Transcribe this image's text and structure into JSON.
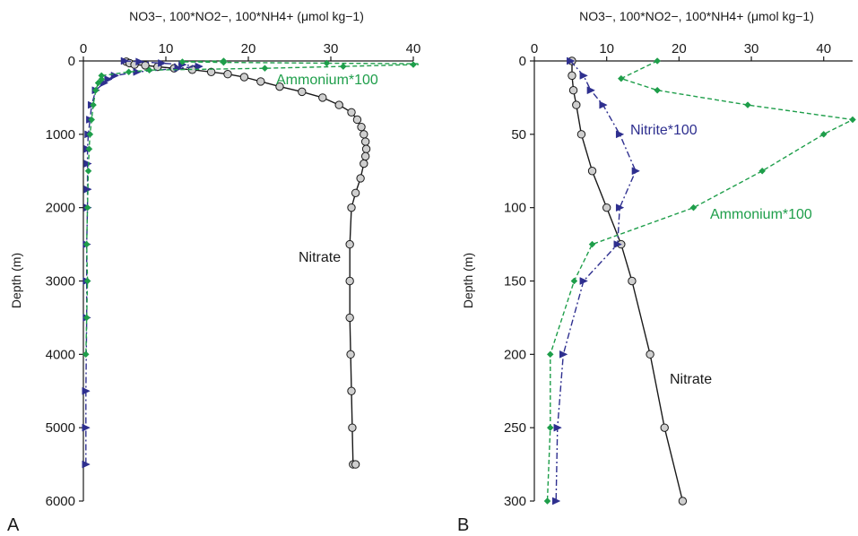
{
  "chart_data": [
    {
      "type": "line",
      "panel_label": "A",
      "xlabel": "NO3−, 100*NO2−, 100*NH4+ (μmol kg−1)",
      "ylabel": "Depth (m)",
      "xlim": [
        0,
        40
      ],
      "ylim": [
        6000,
        0
      ],
      "x_axis_position": "top",
      "x_ticks": [
        0,
        10,
        20,
        30,
        40
      ],
      "y_ticks": [
        0,
        1000,
        2000,
        3000,
        4000,
        5000,
        6000
      ],
      "grid": false,
      "series": [
        {
          "name": "Nitrate",
          "color": "#1a1a1a",
          "line": "solid",
          "marker": "circle",
          "x": [
            5.2,
            5.6,
            6.2,
            7.5,
            9.0,
            11.0,
            13.2,
            15.5,
            17.5,
            19.5,
            21.5,
            23.8,
            26.5,
            29.0,
            31.0,
            32.5,
            33.2,
            33.7,
            34.0,
            34.2,
            34.3,
            34.2,
            34.0,
            33.6,
            33.0,
            32.5,
            32.3,
            32.3,
            32.3,
            32.4,
            32.5,
            32.6,
            32.7,
            33.0
          ],
          "y": [
            10,
            30,
            50,
            60,
            80,
            100,
            120,
            150,
            180,
            220,
            280,
            350,
            420,
            500,
            600,
            700,
            800,
            900,
            1000,
            1100,
            1200,
            1300,
            1400,
            1600,
            1800,
            2000,
            2500,
            3000,
            3500,
            4000,
            4500,
            5000,
            5500,
            5500
          ]
        },
        {
          "name": "Nitrite*100",
          "color": "#2e2f8f",
          "line": "dashdot",
          "marker": "triangle",
          "x": [
            5.0,
            6.8,
            9.5,
            12.0,
            14.0,
            11.5,
            6.5,
            3.8,
            3.0,
            2.5,
            1.5,
            1.0,
            0.8,
            0.6,
            0.5,
            0.5,
            0.5,
            0.5,
            0.4,
            0.4,
            0.4,
            0.3,
            0.3,
            0.3
          ],
          "y": [
            0,
            10,
            30,
            50,
            75,
            100,
            150,
            200,
            250,
            300,
            400,
            600,
            800,
            1000,
            1200,
            1400,
            1750,
            2000,
            2500,
            3000,
            3500,
            4500,
            5000,
            5500
          ]
        },
        {
          "name": "Ammonium*100",
          "color": "#1e9e4a",
          "line": "dashed",
          "marker": "diamond",
          "x": [
            17.0,
            12.0,
            17.0,
            29.5,
            44.0,
            40.0,
            31.5,
            22.0,
            8.0,
            5.5,
            2.2,
            2.2,
            1.8,
            1.5,
            1.2,
            1.0,
            0.8,
            0.7,
            0.6,
            0.5,
            0.4,
            0.5,
            0.4,
            0.3
          ],
          "y": [
            0,
            12,
            20,
            30,
            40,
            50,
            75,
            100,
            125,
            150,
            200,
            250,
            300,
            400,
            600,
            800,
            1000,
            1200,
            1500,
            2000,
            2500,
            3000,
            3500,
            4000
          ]
        }
      ],
      "annotations": [
        {
          "text": "Ammonium*100",
          "series": "Ammonium*100"
        },
        {
          "text": "Nitrate",
          "series": "Nitrate"
        }
      ]
    },
    {
      "type": "line",
      "panel_label": "B",
      "xlabel": "NO3−, 100*NO2−, 100*NH4+ (μmol kg−1)",
      "ylabel": "Depth (m)",
      "xlim": [
        0,
        44
      ],
      "ylim": [
        300,
        0
      ],
      "x_axis_position": "top",
      "x_ticks": [
        0,
        10,
        20,
        30,
        40
      ],
      "y_ticks": [
        0,
        50,
        100,
        150,
        200,
        250,
        300
      ],
      "grid": false,
      "series": [
        {
          "name": "Nitrate",
          "color": "#1a1a1a",
          "line": "solid",
          "marker": "circle",
          "x": [
            5.2,
            5.2,
            5.4,
            5.8,
            6.5,
            8.0,
            10.0,
            12.0,
            13.5,
            16.0,
            18.0,
            20.5
          ],
          "y": [
            0,
            10,
            20,
            30,
            50,
            75,
            100,
            125,
            150,
            200,
            250,
            300
          ]
        },
        {
          "name": "Nitrite*100",
          "color": "#2e2f8f",
          "line": "dashdot",
          "marker": "triangle",
          "x": [
            5.0,
            6.8,
            7.8,
            9.5,
            11.8,
            14.0,
            11.8,
            11.5,
            6.8,
            4.0,
            3.2,
            3.0
          ],
          "y": [
            0,
            10,
            20,
            30,
            50,
            75,
            100,
            125,
            150,
            200,
            250,
            300
          ],
          "note_x": []
        },
        {
          "name": "Ammonium*100",
          "color": "#1e9e4a",
          "line": "dashed",
          "marker": "diamond",
          "x": [
            17.0,
            12.0,
            17.0,
            29.5,
            44.0,
            40.0,
            31.5,
            22.0,
            8.0,
            5.5,
            2.2,
            2.2,
            1.8
          ],
          "y": [
            0,
            12,
            20,
            30,
            40,
            50,
            75,
            100,
            125,
            150,
            200,
            250,
            300
          ]
        }
      ],
      "annotations": [
        {
          "text": "Nitrite*100",
          "series": "Nitrite*100"
        },
        {
          "text": "Ammonium*100",
          "series": "Ammonium*100"
        },
        {
          "text": "Nitrate",
          "series": "Nitrate"
        }
      ]
    }
  ]
}
